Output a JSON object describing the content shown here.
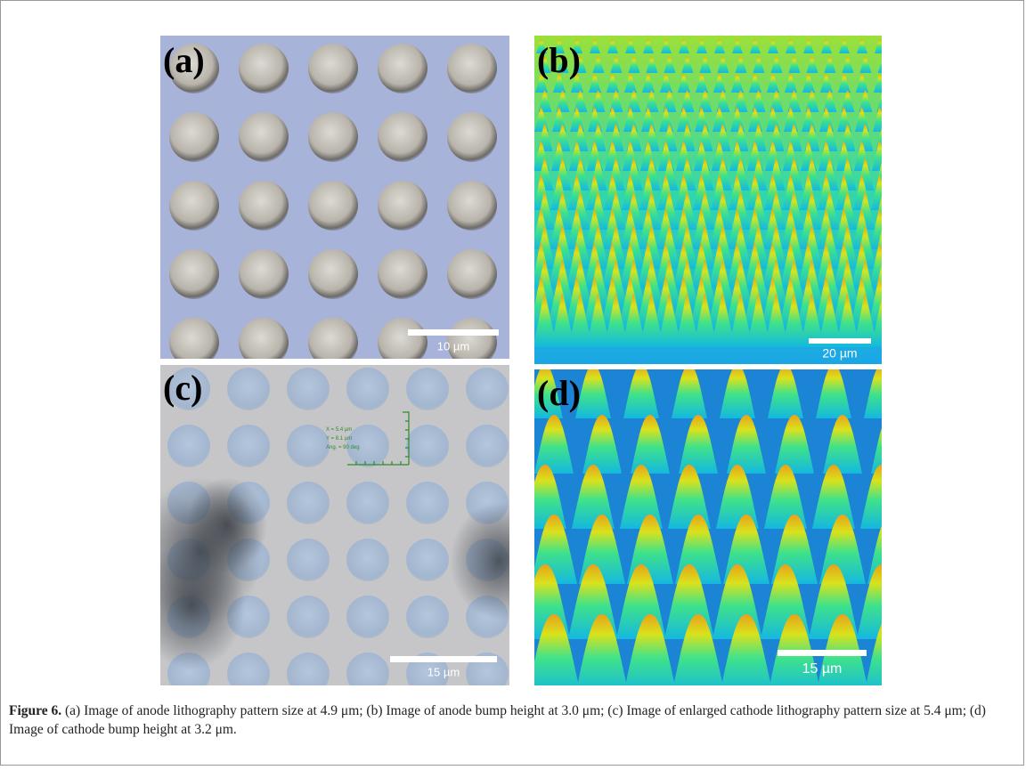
{
  "figure": {
    "panels": [
      {
        "label": "(a)",
        "scale_bar": "10 µm"
      },
      {
        "label": "(b)",
        "scale_bar": "20 µm"
      },
      {
        "label": "(c)",
        "scale_bar": "15 µm",
        "overlay": [
          "X = 5.4 µm",
          "Y = 8.1 µm",
          "Ang. = 90 deg"
        ]
      },
      {
        "label": "(d)",
        "scale_bar": "15 µm"
      }
    ],
    "caption": {
      "label": "Figure 6.",
      "text": " (a) Image of anode lithography pattern size at 4.9 μm; (b) Image of anode bump height at 3.0 μm; (c) Image of enlarged cathode lithography pattern size at 5.4 μm; (d) Image of cathode bump height at 3.2 μm."
    }
  }
}
